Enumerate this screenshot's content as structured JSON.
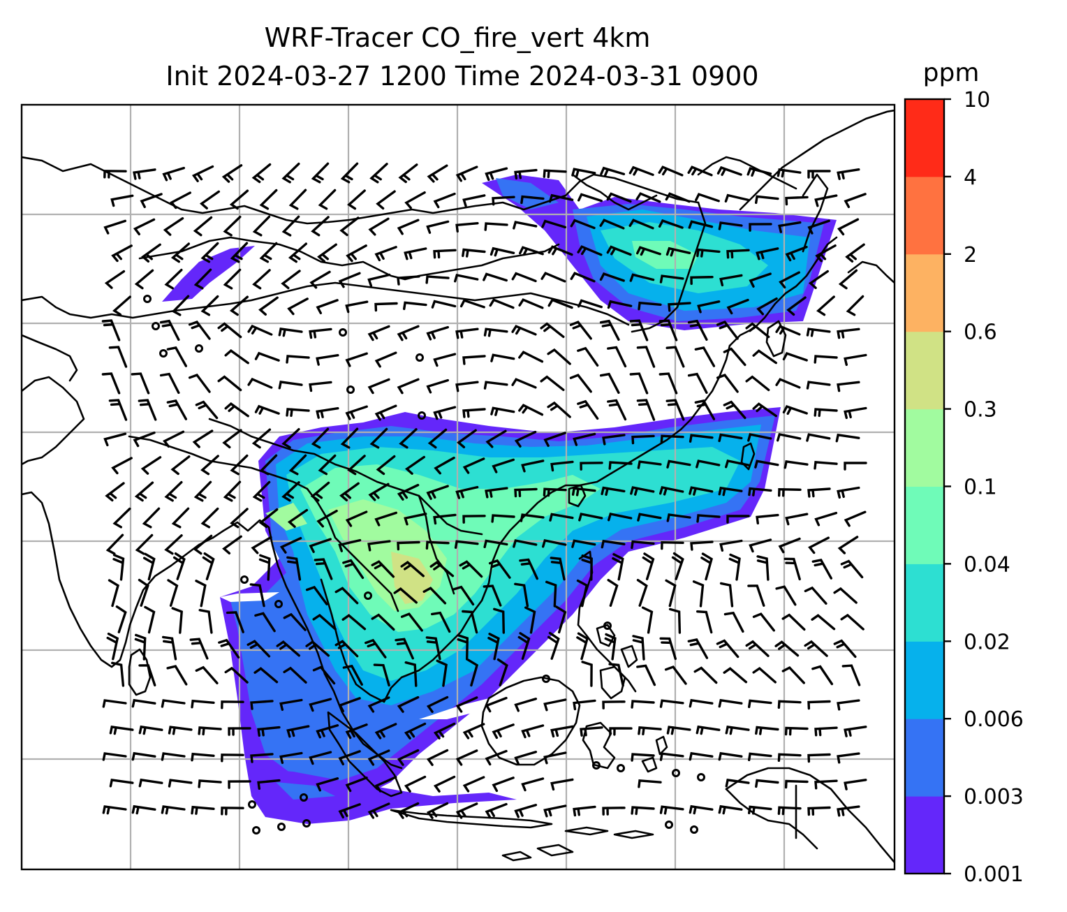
{
  "title": {
    "line1": "WRF-Tracer CO_fire_vert 4km",
    "line2": "Init 2024-03-27 1200 Time 2024-03-31 0900"
  },
  "colorbar": {
    "unit": "ppm",
    "levels": [
      "0.001",
      "0.003",
      "0.006",
      "0.02",
      "0.04",
      "0.1",
      "0.3",
      "0.6",
      "2",
      "4",
      "10"
    ],
    "colors": [
      "#6427fa",
      "#3573f4",
      "#06b1ec",
      "#2ddfd2",
      "#6ffbb8",
      "#a1fb9f",
      "#d0e285",
      "#fdb262",
      "#ff7240",
      "#ff2b18"
    ]
  }
}
